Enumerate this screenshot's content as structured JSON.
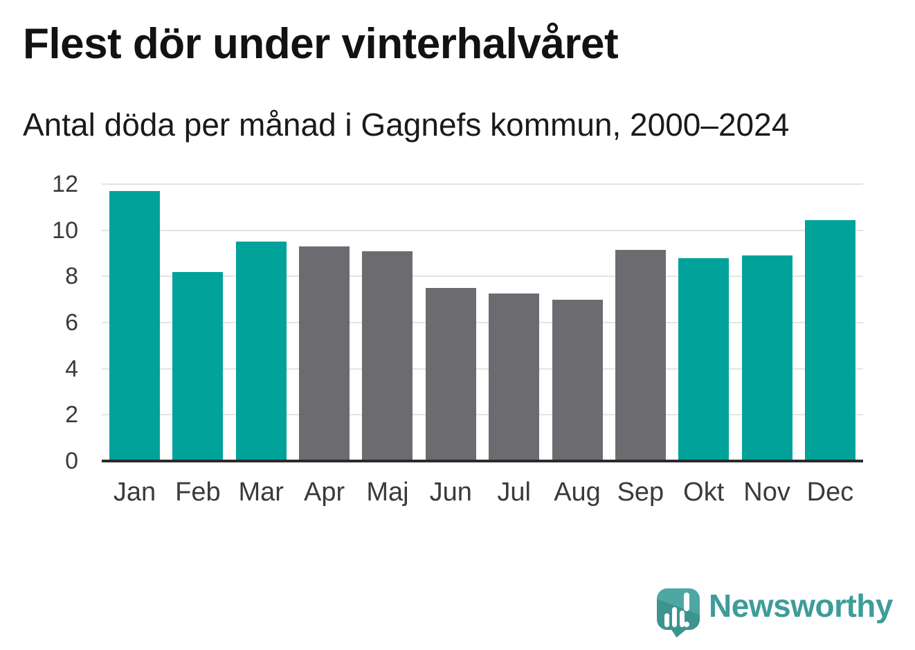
{
  "chart_data": {
    "type": "bar",
    "title": "Flest dör under vinterhalvåret",
    "subtitle": "Antal döda per månad i Gagnefs kommun, 2000–2024",
    "categories": [
      "Jan",
      "Feb",
      "Mar",
      "Apr",
      "Maj",
      "Jun",
      "Jul",
      "Aug",
      "Sep",
      "Okt",
      "Nov",
      "Dec"
    ],
    "values": [
      11.7,
      8.2,
      9.5,
      9.3,
      9.1,
      7.5,
      7.25,
      7.0,
      9.15,
      8.8,
      8.9,
      10.45
    ],
    "colors": [
      "winter",
      "winter",
      "winter",
      "summer",
      "summer",
      "summer",
      "summer",
      "summer",
      "summer",
      "winter",
      "winter",
      "winter"
    ],
    "palette": {
      "winter": "#00a299",
      "summer": "#6c6c70"
    },
    "xlabel": "",
    "ylabel": "",
    "ylim": [
      0,
      12
    ],
    "yticks": [
      0,
      2,
      4,
      6,
      8,
      10,
      12
    ],
    "grid": true,
    "legend": false,
    "grid_color": "#e4e4e4",
    "axis_color": "#2b2b2b",
    "tick_label_color": "#3a3a3a"
  },
  "footer": {
    "brand": "Newsworthy",
    "logo_icon": "speech-bubble-bar-chart-exclamation-icon",
    "brand_color": "#3e9c99",
    "icon_color_light": "#4ea7a3",
    "icon_color_dark": "#3d938f"
  }
}
